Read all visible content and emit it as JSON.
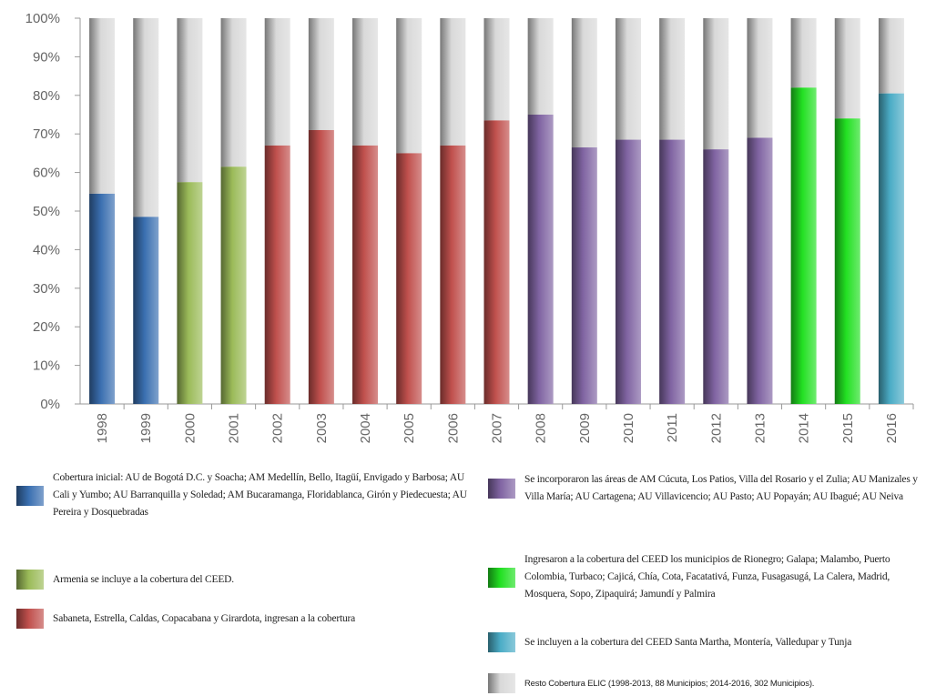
{
  "chart_data": {
    "type": "bar",
    "stacked_to": 100,
    "ylim": [
      0,
      100
    ],
    "yticks": [
      "0%",
      "10%",
      "20%",
      "30%",
      "40%",
      "50%",
      "60%",
      "70%",
      "80%",
      "90%",
      "100%"
    ],
    "categories": [
      "1998",
      "1999",
      "2000",
      "2001",
      "2002",
      "2003",
      "2004",
      "2005",
      "2006",
      "2007",
      "2008",
      "2009",
      "2010",
      "2011",
      "2012",
      "2013",
      "2014",
      "2015",
      "2016"
    ],
    "values": [
      54.5,
      48.5,
      57.5,
      61.5,
      67,
      71,
      67,
      65,
      67,
      73.5,
      75,
      66.5,
      68.5,
      68.5,
      66,
      69,
      82,
      74,
      80.5
    ],
    "groups": [
      "blue",
      "blue",
      "olive",
      "olive",
      "red",
      "red",
      "red",
      "red",
      "red",
      "red",
      "purple",
      "purple",
      "purple",
      "purple",
      "purple",
      "purple",
      "green",
      "green",
      "teal"
    ],
    "group_colors": {
      "blue": "#3a6fb0",
      "olive": "#9bbb59",
      "red": "#c0504d",
      "purple": "#8064a2",
      "green": "#22e022",
      "teal": "#4bacc6",
      "rest": "#d9d9d9"
    },
    "gridlines": true
  },
  "legend": [
    {
      "group": "blue",
      "text": "Cobertura inicial: AU de Bogotá D.C. y Soacha; AM Medellín, Bello, Itagüí, Envigado y Barbosa; AU Cali y Yumbo; AU Barranquilla y Soledad; AM Bucaramanga, Floridablanca, Girón y Piedecuesta; AU Pereira y Dosquebradas"
    },
    {
      "group": "olive",
      "text": "Armenia se incluye a la cobertura del CEED."
    },
    {
      "group": "red",
      "text": "Sabaneta, Estrella, Caldas, Copacabana y Girardota, ingresan a la cobertura"
    },
    {
      "group": "purple",
      "text": "Se incorporaron las áreas de AM Cúcuta, Los Patios, Villa del Rosario y el Zulia; AU Manizales y Villa María; AU Cartagena; AU Villavicencio; AU Pasto; AU Popayán; AU Ibagué; AU Neiva"
    },
    {
      "group": "green",
      "text": "Ingresaron a la cobertura del CEED los municipios de Rionegro; Galapa; Malambo, Puerto Colombia, Turbaco; Cajicá, Chía, Cota, Facatativá, Funza, Fusagasugá, La Calera, Madrid, Mosquera, Sopo, Zipaquirá; Jamundí y Palmira"
    },
    {
      "group": "teal",
      "text": "Se incluyen a la cobertura del CEED Santa Martha, Montería, Valledupar y Tunja"
    },
    {
      "group": "rest",
      "text": "Resto Cobertura ELIC (1998-2013, 88 Municipios; 2014-2016, 302 Municipios)."
    }
  ]
}
